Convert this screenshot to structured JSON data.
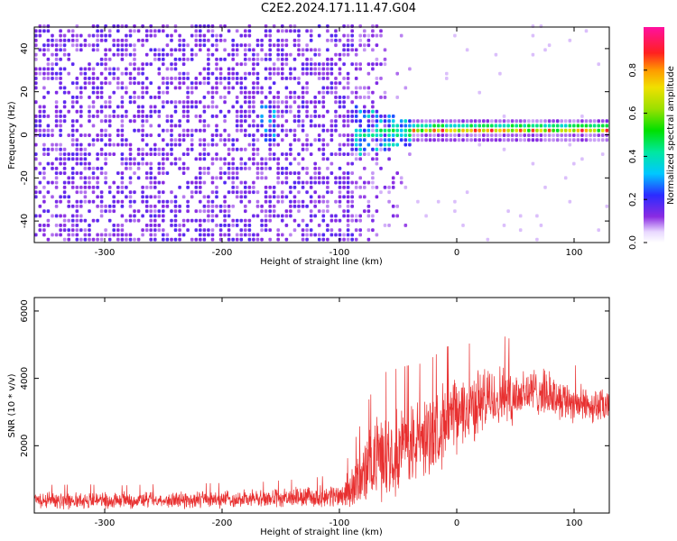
{
  "title": "C2E2.2024.171.11.47.G04",
  "chart_data": [
    {
      "type": "heatmap",
      "xlabel": "Height of straight line (km)",
      "ylabel": "Frequency (Hz)",
      "xlim": [
        -360,
        130
      ],
      "ylim": [
        -50,
        50
      ],
      "xticks": [
        -300,
        -200,
        -100,
        0,
        100
      ],
      "yticks": [
        -40,
        -20,
        0,
        20,
        40
      ],
      "colorbar": {
        "label": "Normalized spectral amplitude",
        "range": [
          0.0,
          1.0
        ],
        "ticks": [
          0.0,
          0.2,
          0.4,
          0.6,
          0.8
        ],
        "colormap": "rainbow (white, purple, blue, cyan, green, yellow, orange, red, magenta)"
      },
      "regions": [
        {
          "x_range": [
            -360,
            -90
          ],
          "freq_range": [
            -50,
            50
          ],
          "amplitude": "0.1-0.2 (noise)"
        },
        {
          "x_range": [
            -170,
            -155
          ],
          "freq_center": 5,
          "amplitude": "0.3"
        },
        {
          "x_range": [
            -95,
            -40
          ],
          "freq_center": 0,
          "amplitude": "0.3-0.5"
        },
        {
          "x_range": [
            -40,
            130
          ],
          "freq_center": 1,
          "freq_width": 4,
          "amplitude": "0.5-0.9"
        }
      ]
    },
    {
      "type": "line",
      "xlabel": "Height of straight line (km)",
      "ylabel": "SNR (10 * v/v)",
      "xlim": [
        -360,
        130
      ],
      "ylim": [
        0,
        6400
      ],
      "xticks": [
        -300,
        -200,
        -100,
        0,
        100
      ],
      "yticks": [
        2000,
        4000,
        6000
      ],
      "series": [
        {
          "color": "#e83030",
          "x": [
            -360,
            -340,
            -320,
            -300,
            -280,
            -260,
            -240,
            -220,
            -200,
            -180,
            -160,
            -140,
            -120,
            -100,
            -90,
            -80,
            -70,
            -60,
            -50,
            -40,
            -30,
            -20,
            -10,
            0,
            10,
            20,
            30,
            40,
            50,
            60,
            70,
            80,
            90,
            100,
            110,
            120,
            130
          ],
          "y": [
            400,
            380,
            390,
            370,
            380,
            390,
            380,
            400,
            410,
            420,
            430,
            450,
            480,
            520,
            700,
            1100,
            1600,
            1800,
            1900,
            2000,
            2200,
            2400,
            2700,
            2900,
            3100,
            3300,
            3400,
            3500,
            3500,
            3600,
            3600,
            3500,
            3400,
            3300,
            3200,
            3200,
            3100
          ],
          "spread": [
            300,
            280,
            300,
            280,
            280,
            290,
            290,
            300,
            300,
            300,
            320,
            340,
            360,
            420,
            700,
            1100,
            1400,
            1500,
            1500,
            1500,
            1400,
            1400,
            1400,
            1300,
            1200,
            1200,
            1100,
            1100,
            1000,
            900,
            800,
            800,
            700,
            700,
            600,
            600,
            600
          ]
        }
      ]
    }
  ]
}
